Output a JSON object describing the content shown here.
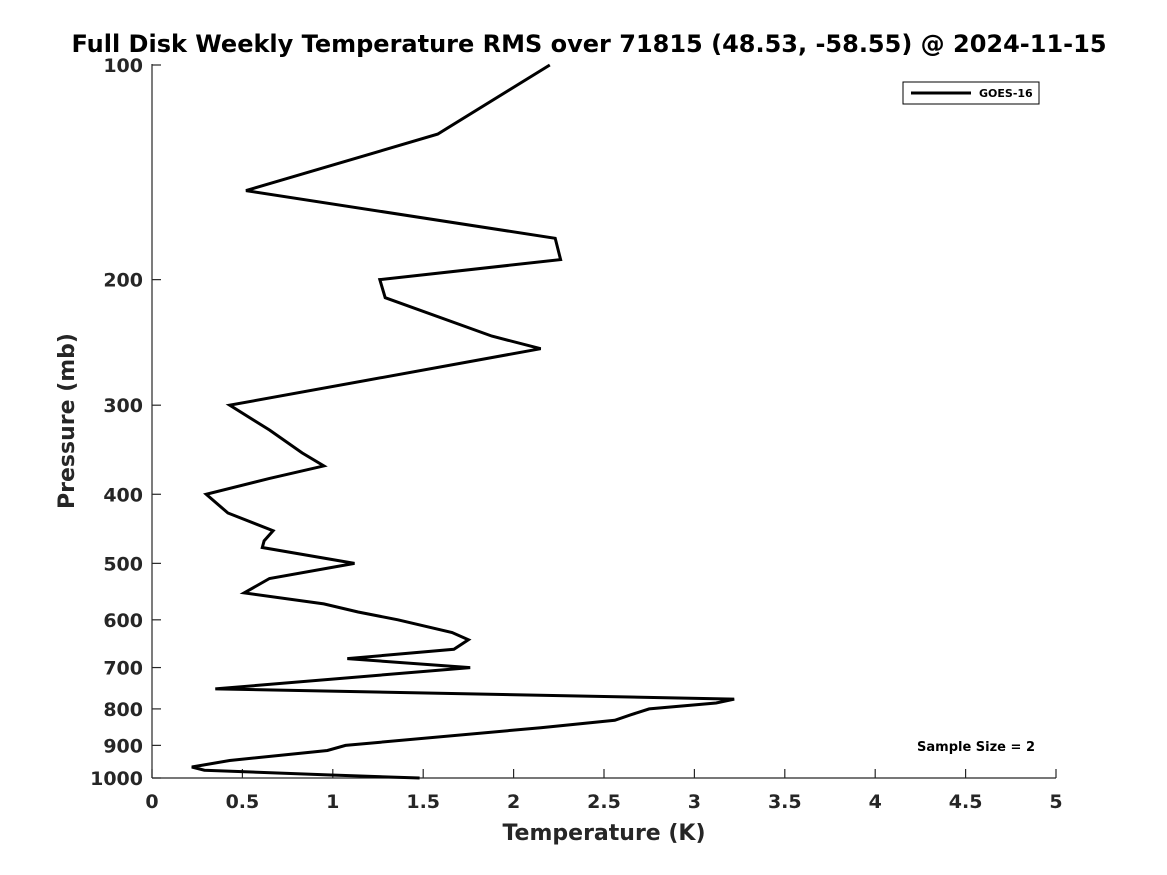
{
  "chart_data": {
    "type": "line",
    "title": "Full Disk Weekly Temperature RMS over 71815 (48.53, -58.55) @ 2024-11-15",
    "xlabel": "Temperature (K)",
    "ylabel": "Pressure (mb)",
    "xlim": [
      0,
      5
    ],
    "ylim": [
      100,
      1000
    ],
    "y_scale": "log",
    "y_reversed": true,
    "x_ticks": [
      "0",
      "0.5",
      "1",
      "1.5",
      "2",
      "2.5",
      "3",
      "3.5",
      "4",
      "4.5",
      "5"
    ],
    "y_ticks": [
      "100",
      "200",
      "300",
      "400",
      "500",
      "600",
      "700",
      "800",
      "900",
      "1000"
    ],
    "grid": false,
    "legend": {
      "position": "top-right",
      "entries": [
        "GOES-16"
      ]
    },
    "annotation": "Sample Size = 2",
    "series": [
      {
        "name": "GOES-16",
        "color": "#000000",
        "x": [
          2.2,
          1.58,
          0.52,
          2.23,
          2.26,
          1.26,
          1.29,
          1.88,
          2.15,
          0.43,
          0.65,
          0.83,
          0.95,
          0.65,
          0.3,
          0.42,
          0.67,
          0.62,
          0.61,
          1.12,
          0.65,
          0.51,
          0.95,
          1.14,
          1.36,
          1.66,
          1.75,
          1.67,
          1.08,
          1.76,
          0.35,
          3.22,
          3.12,
          2.75,
          2.65,
          2.56,
          2.15,
          1.07,
          0.97,
          0.43,
          0.22,
          0.29,
          0.97,
          1.48
        ],
        "y": [
          100,
          125,
          150,
          175,
          187.5,
          200,
          212,
          240,
          250,
          300,
          325,
          350,
          365,
          380,
          400,
          425,
          450,
          465,
          475,
          500,
          525,
          550,
          570,
          585,
          600,
          625,
          640,
          660,
          680,
          700,
          750,
          775,
          785,
          800,
          815,
          830,
          850,
          900,
          915,
          945,
          965,
          975,
          990,
          1000
        ]
      }
    ]
  }
}
